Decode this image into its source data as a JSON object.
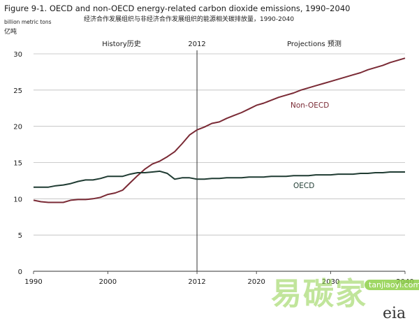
{
  "chart_data": {
    "type": "line",
    "title": "Figure 9-1. OECD and non-OECD energy-related carbon dioxide emissions, 1990–2040",
    "subtitle": "经济合作发展组织与非经济合作发展组织的能源相关碳排放量，1990-2040",
    "ylabel": "billion metric tons",
    "ylabel_cn": "亿吨",
    "xlim": [
      1990,
      2040
    ],
    "ylim": [
      0,
      30
    ],
    "x_ticks": [
      1990,
      2000,
      2012,
      2020,
      2030,
      2040
    ],
    "y_ticks": [
      0,
      5,
      10,
      15,
      20,
      25,
      30
    ],
    "grid": "horizontal",
    "divider_year": 2012,
    "annotations": {
      "history": "History历史",
      "divider": "2012",
      "projections": "Projections  预测"
    },
    "series": [
      {
        "name": "Non-OECD",
        "color": "#7a2a35",
        "x": [
          1990,
          1991,
          1992,
          1993,
          1994,
          1995,
          1996,
          1997,
          1998,
          1999,
          2000,
          2001,
          2002,
          2003,
          2004,
          2005,
          2006,
          2007,
          2008,
          2009,
          2010,
          2011,
          2012,
          2013,
          2014,
          2015,
          2016,
          2017,
          2018,
          2019,
          2020,
          2021,
          2022,
          2023,
          2024,
          2025,
          2026,
          2027,
          2028,
          2029,
          2030,
          2031,
          2032,
          2033,
          2034,
          2035,
          2036,
          2037,
          2038,
          2039,
          2040
        ],
        "values": [
          9.8,
          9.6,
          9.5,
          9.5,
          9.5,
          9.8,
          9.9,
          9.9,
          10.0,
          10.2,
          10.6,
          10.8,
          11.2,
          12.2,
          13.2,
          14.1,
          14.8,
          15.2,
          15.8,
          16.5,
          17.6,
          18.8,
          19.5,
          19.9,
          20.4,
          20.6,
          21.1,
          21.5,
          21.9,
          22.4,
          22.9,
          23.2,
          23.6,
          24.0,
          24.3,
          24.6,
          25.0,
          25.3,
          25.6,
          25.9,
          26.2,
          26.5,
          26.8,
          27.1,
          27.4,
          27.8,
          28.1,
          28.4,
          28.8,
          29.1,
          29.4
        ]
      },
      {
        "name": "OECD",
        "color": "#1f3b32",
        "x": [
          1990,
          1991,
          1992,
          1993,
          1994,
          1995,
          1996,
          1997,
          1998,
          1999,
          2000,
          2001,
          2002,
          2003,
          2004,
          2005,
          2006,
          2007,
          2008,
          2009,
          2010,
          2011,
          2012,
          2013,
          2014,
          2015,
          2016,
          2017,
          2018,
          2019,
          2020,
          2021,
          2022,
          2023,
          2024,
          2025,
          2026,
          2027,
          2028,
          2029,
          2030,
          2031,
          2032,
          2033,
          2034,
          2035,
          2036,
          2037,
          2038,
          2039,
          2040
        ],
        "values": [
          11.6,
          11.6,
          11.6,
          11.8,
          11.9,
          12.1,
          12.4,
          12.6,
          12.6,
          12.8,
          13.1,
          13.1,
          13.1,
          13.4,
          13.6,
          13.6,
          13.7,
          13.8,
          13.5,
          12.7,
          12.9,
          12.9,
          12.7,
          12.7,
          12.8,
          12.8,
          12.9,
          12.9,
          12.9,
          13.0,
          13.0,
          13.0,
          13.1,
          13.1,
          13.1,
          13.2,
          13.2,
          13.2,
          13.3,
          13.3,
          13.3,
          13.4,
          13.4,
          13.4,
          13.5,
          13.5,
          13.6,
          13.6,
          13.7,
          13.7,
          13.7
        ]
      }
    ]
  },
  "watermark": {
    "text": "易碳家",
    "site": "tanjiaoyi.com"
  },
  "logo_text": "eia"
}
